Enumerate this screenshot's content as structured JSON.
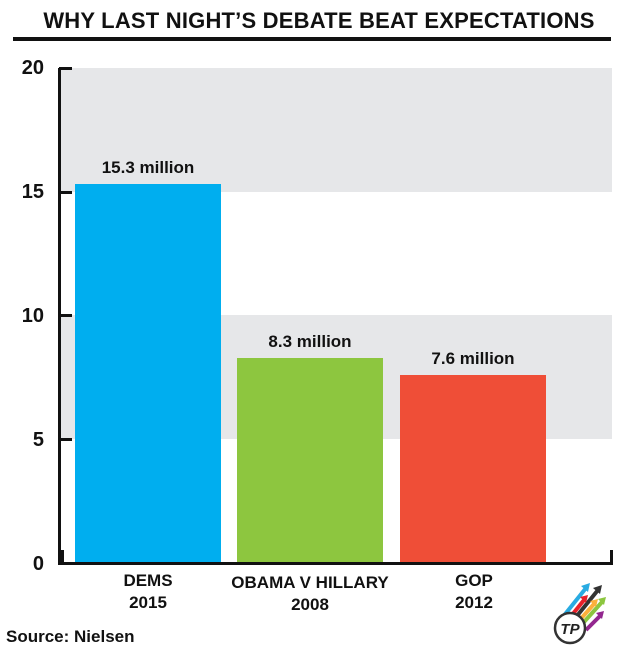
{
  "header": {
    "title": "WHY LAST NIGHT’S DEBATE BEAT EXPECTATIONS"
  },
  "footer": {
    "source": "Source: Nielsen",
    "logo_text": "TP"
  },
  "axis": {
    "y_ticks": [
      "0",
      "5",
      "10",
      "15",
      "20"
    ]
  },
  "bars": [
    {
      "label_line1": "DEMS",
      "label_line2": "2015",
      "value_label": "15.3 million",
      "value": 15.3,
      "color": "#00aeef"
    },
    {
      "label_line1": "OBAMA V HILLARY",
      "label_line2": "2008",
      "value_label": "8.3 million",
      "value": 8.3,
      "color": "#8dc63f"
    },
    {
      "label_line1": "GOP",
      "label_line2": "2012",
      "value_label": "7.6 million",
      "value": 7.6,
      "color": "#ef4e37"
    }
  ],
  "colors": {
    "band": "#e6e7e9",
    "axis": "#111111"
  },
  "chart_data": {
    "type": "bar",
    "title": "WHY LAST NIGHT’S DEBATE BEAT EXPECTATIONS",
    "categories": [
      "DEMS 2015",
      "OBAMA V HILLARY 2008",
      "GOP 2012"
    ],
    "values": [
      15.3,
      8.3,
      7.6
    ],
    "data_labels": [
      "15.3 million",
      "8.3 million",
      "7.6 million"
    ],
    "colors": [
      "#00aeef",
      "#8dc63f",
      "#ef4e37"
    ],
    "xlabel": "",
    "ylabel": "",
    "unit": "million viewers",
    "ylim": [
      0,
      20
    ],
    "yticks": [
      0,
      5,
      10,
      15,
      20
    ],
    "grid": "alternating shaded bands (5-10, 15-20)",
    "legend": "none",
    "source": "Source: Nielsen"
  }
}
